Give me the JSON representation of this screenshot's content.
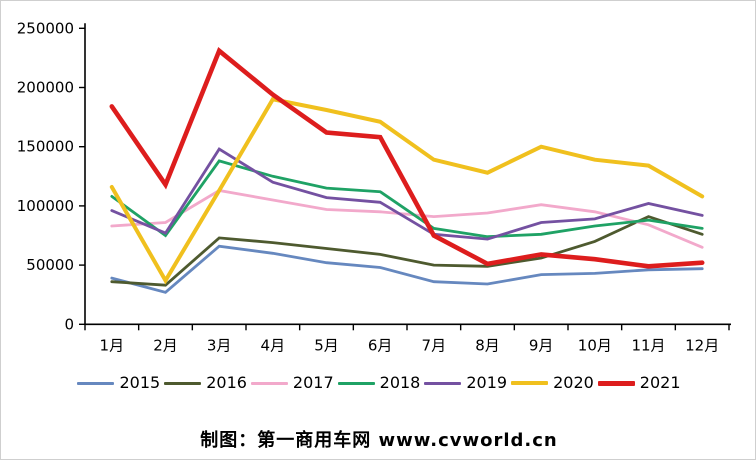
{
  "caption": "制图：第一商用车网 www.cvworld.cn",
  "chart_data": {
    "type": "line",
    "title": "",
    "xlabel": "",
    "ylabel": "",
    "categories": [
      "1月",
      "2月",
      "3月",
      "4月",
      "5月",
      "6月",
      "7月",
      "8月",
      "9月",
      "10月",
      "11月",
      "12月"
    ],
    "ylim": [
      0,
      250000
    ],
    "ytick_interval": 50000,
    "yticks": [
      0,
      50000,
      100000,
      150000,
      200000,
      250000
    ],
    "grid": false,
    "legend_position": "bottom",
    "series": [
      {
        "name": "2015",
        "color": "#6688bf",
        "width": 2.8,
        "values": [
          39000,
          27000,
          66000,
          60000,
          52000,
          48000,
          36000,
          34000,
          42000,
          43000,
          46000,
          47000
        ]
      },
      {
        "name": "2016",
        "color": "#4e5a2f",
        "width": 2.8,
        "values": [
          36000,
          33000,
          73000,
          69000,
          64000,
          59000,
          50000,
          49000,
          56000,
          70000,
          91000,
          76000
        ]
      },
      {
        "name": "2017",
        "color": "#f2a9cb",
        "width": 2.8,
        "values": [
          83000,
          86000,
          113000,
          105000,
          97000,
          95000,
          91000,
          94000,
          101000,
          95000,
          84000,
          65000
        ]
      },
      {
        "name": "2018",
        "color": "#1fa265",
        "width": 2.8,
        "values": [
          108000,
          75000,
          138000,
          125000,
          115000,
          112000,
          81000,
          74000,
          76000,
          83000,
          88000,
          81000
        ]
      },
      {
        "name": "2019",
        "color": "#7451a1",
        "width": 2.8,
        "values": [
          96000,
          77000,
          148000,
          120000,
          107000,
          103000,
          76000,
          72000,
          86000,
          89000,
          102000,
          92000
        ]
      },
      {
        "name": "2020",
        "color": "#f0c01e",
        "width": 4.0,
        "values": [
          116000,
          37000,
          113000,
          190000,
          181000,
          171000,
          139000,
          128000,
          150000,
          139000,
          134000,
          108000
        ]
      },
      {
        "name": "2021",
        "color": "#dd1d1d",
        "width": 4.6,
        "values": [
          184000,
          118000,
          231000,
          194000,
          162000,
          158000,
          75000,
          51000,
          59000,
          55000,
          49000,
          52000
        ]
      }
    ]
  }
}
